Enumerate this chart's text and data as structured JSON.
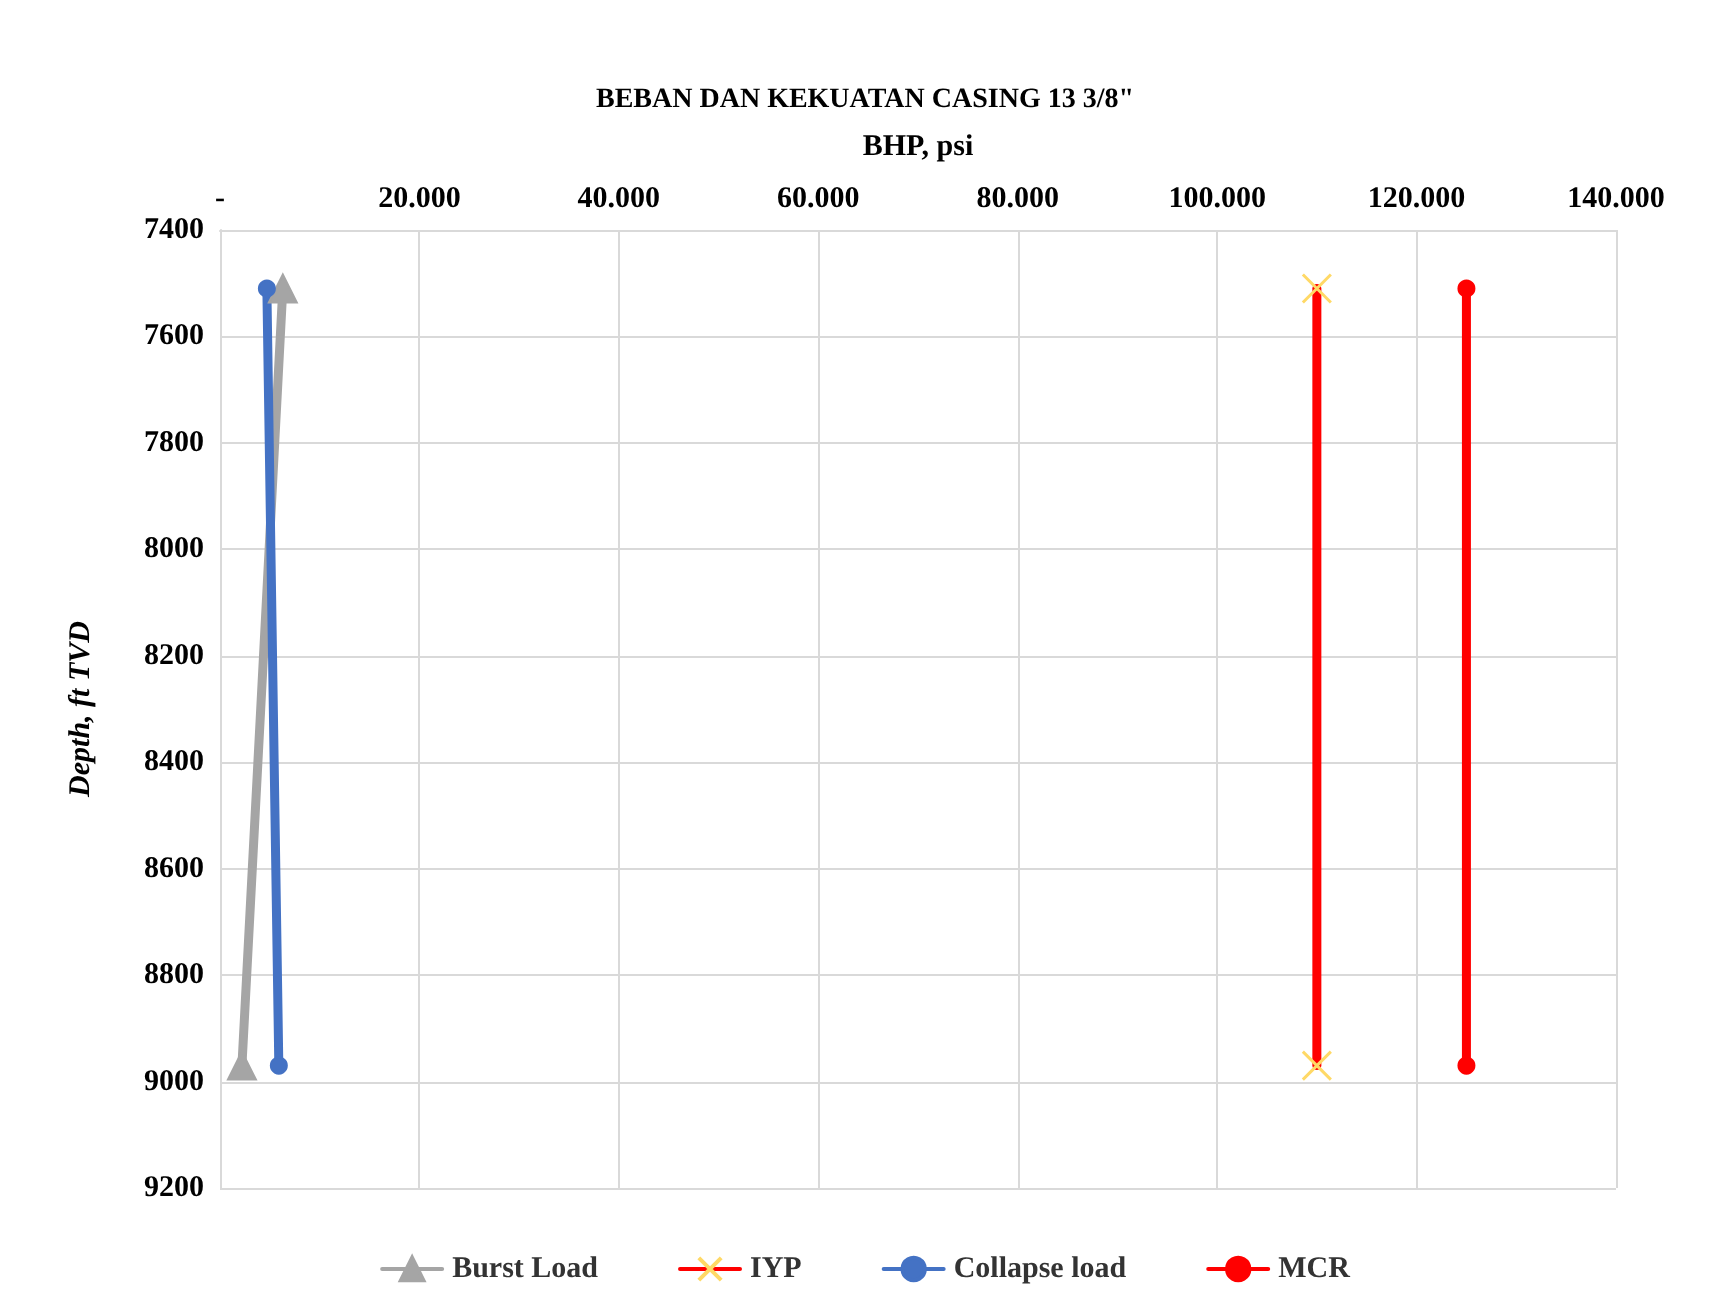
{
  "chart_data": {
    "type": "line",
    "title": "BEBAN DAN KEKUATAN CASING 13 3/8\"",
    "xlabel": "BHP, psi",
    "ylabel": "Depth, ft TVD",
    "xlim": [
      0,
      140000
    ],
    "xticks": [
      {
        "value": 0,
        "label": "-"
      },
      {
        "value": 20000,
        "label": "20.000"
      },
      {
        "value": 40000,
        "label": "40.000"
      },
      {
        "value": 60000,
        "label": "60.000"
      },
      {
        "value": 80000,
        "label": "80.000"
      },
      {
        "value": 100000,
        "label": "100.000"
      },
      {
        "value": 120000,
        "label": "120.000"
      },
      {
        "value": 140000,
        "label": "140.000"
      }
    ],
    "ylim": [
      9200,
      7400
    ],
    "yticks": [
      7400,
      7600,
      7800,
      8000,
      8200,
      8400,
      8600,
      8800,
      9000,
      9200
    ],
    "grid": true,
    "legend": "bottom",
    "line_style": "solid",
    "series": [
      {
        "name": "Burst Load",
        "color": "#a5a5a5",
        "marker": "triangle",
        "x": [
          6300,
          2200
        ],
        "values": [
          7510,
          8970
        ]
      },
      {
        "name": "IYP",
        "color": "#ff0000",
        "marker": "cross",
        "x": [
          110000,
          110000
        ],
        "values": [
          7510,
          8970
        ]
      },
      {
        "name": "Collapse load",
        "color": "#4472c4",
        "marker": "circle",
        "x": [
          4700,
          5900
        ],
        "values": [
          7510,
          8970
        ]
      },
      {
        "name": "MCR",
        "color": "#ff0000",
        "marker": "circle",
        "x": [
          125000,
          125000
        ],
        "values": [
          7510,
          8970
        ]
      }
    ]
  }
}
